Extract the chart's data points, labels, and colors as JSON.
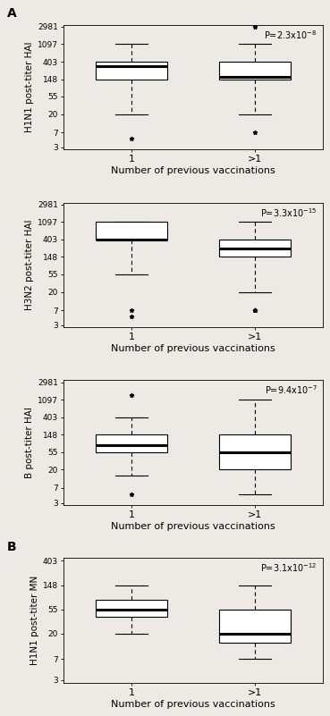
{
  "panels": [
    {
      "label": "A",
      "ylabel": "H1N1 post-titer HAI",
      "pvalue_text": "P=2.3x10",
      "pvalue_exp": "-8",
      "yticks": [
        3,
        7,
        20,
        55,
        148,
        403,
        1097,
        2981
      ],
      "ylim_min": 3,
      "ylim_max": 2981,
      "boxes": [
        {
          "whislo": 20,
          "q1": 148,
          "med": 320,
          "q3": 403,
          "whishi": 1097,
          "fliers": [
            5
          ]
        },
        {
          "whislo": 20,
          "q1": 148,
          "med": 170,
          "q3": 403,
          "whishi": 1097,
          "fliers": [
            7,
            2981
          ]
        }
      ]
    },
    {
      "label": "",
      "ylabel": "H3N2 post-titer HAI",
      "pvalue_text": "P=3.3x10",
      "pvalue_exp": "-15",
      "yticks": [
        3,
        7,
        20,
        55,
        148,
        403,
        1097,
        2981
      ],
      "ylim_min": 3,
      "ylim_max": 2981,
      "boxes": [
        {
          "whislo": 55,
          "q1": 403,
          "med": 403,
          "q3": 1097,
          "whishi": 1097,
          "fliers": [
            5,
            7
          ]
        },
        {
          "whislo": 20,
          "q1": 148,
          "med": 240,
          "q3": 403,
          "whishi": 1097,
          "fliers": [
            7,
            7,
            7
          ]
        }
      ]
    },
    {
      "label": "",
      "ylabel": "B post-titer HAI",
      "pvalue_text": "P=9.4x10",
      "pvalue_exp": "-7",
      "yticks": [
        3,
        7,
        20,
        55,
        148,
        403,
        1097,
        2981
      ],
      "ylim_min": 3,
      "ylim_max": 2981,
      "boxes": [
        {
          "whislo": 14,
          "q1": 55,
          "med": 80,
          "q3": 148,
          "whishi": 403,
          "fliers": [
            5,
            1400
          ]
        },
        {
          "whislo": 5,
          "q1": 20,
          "med": 55,
          "q3": 148,
          "whishi": 1097,
          "fliers": []
        }
      ]
    },
    {
      "label": "B",
      "ylabel": "H1N1 post-titer MN",
      "pvalue_text": "P=3.1x10",
      "pvalue_exp": "-12",
      "yticks": [
        3,
        7,
        20,
        55,
        148,
        403
      ],
      "ylim_min": 3,
      "ylim_max": 403,
      "boxes": [
        {
          "whislo": 20,
          "q1": 40,
          "med": 55,
          "q3": 80,
          "whishi": 148,
          "fliers": []
        },
        {
          "whislo": 7,
          "q1": 14,
          "med": 20,
          "q3": 55,
          "whishi": 148,
          "fliers": []
        }
      ]
    }
  ],
  "xtick_labels": [
    "1",
    ">1"
  ],
  "xlabel": "Number of previous vaccinations",
  "background_color": "#ede9e4",
  "box_facecolor": "white",
  "box_edgecolor": "black"
}
